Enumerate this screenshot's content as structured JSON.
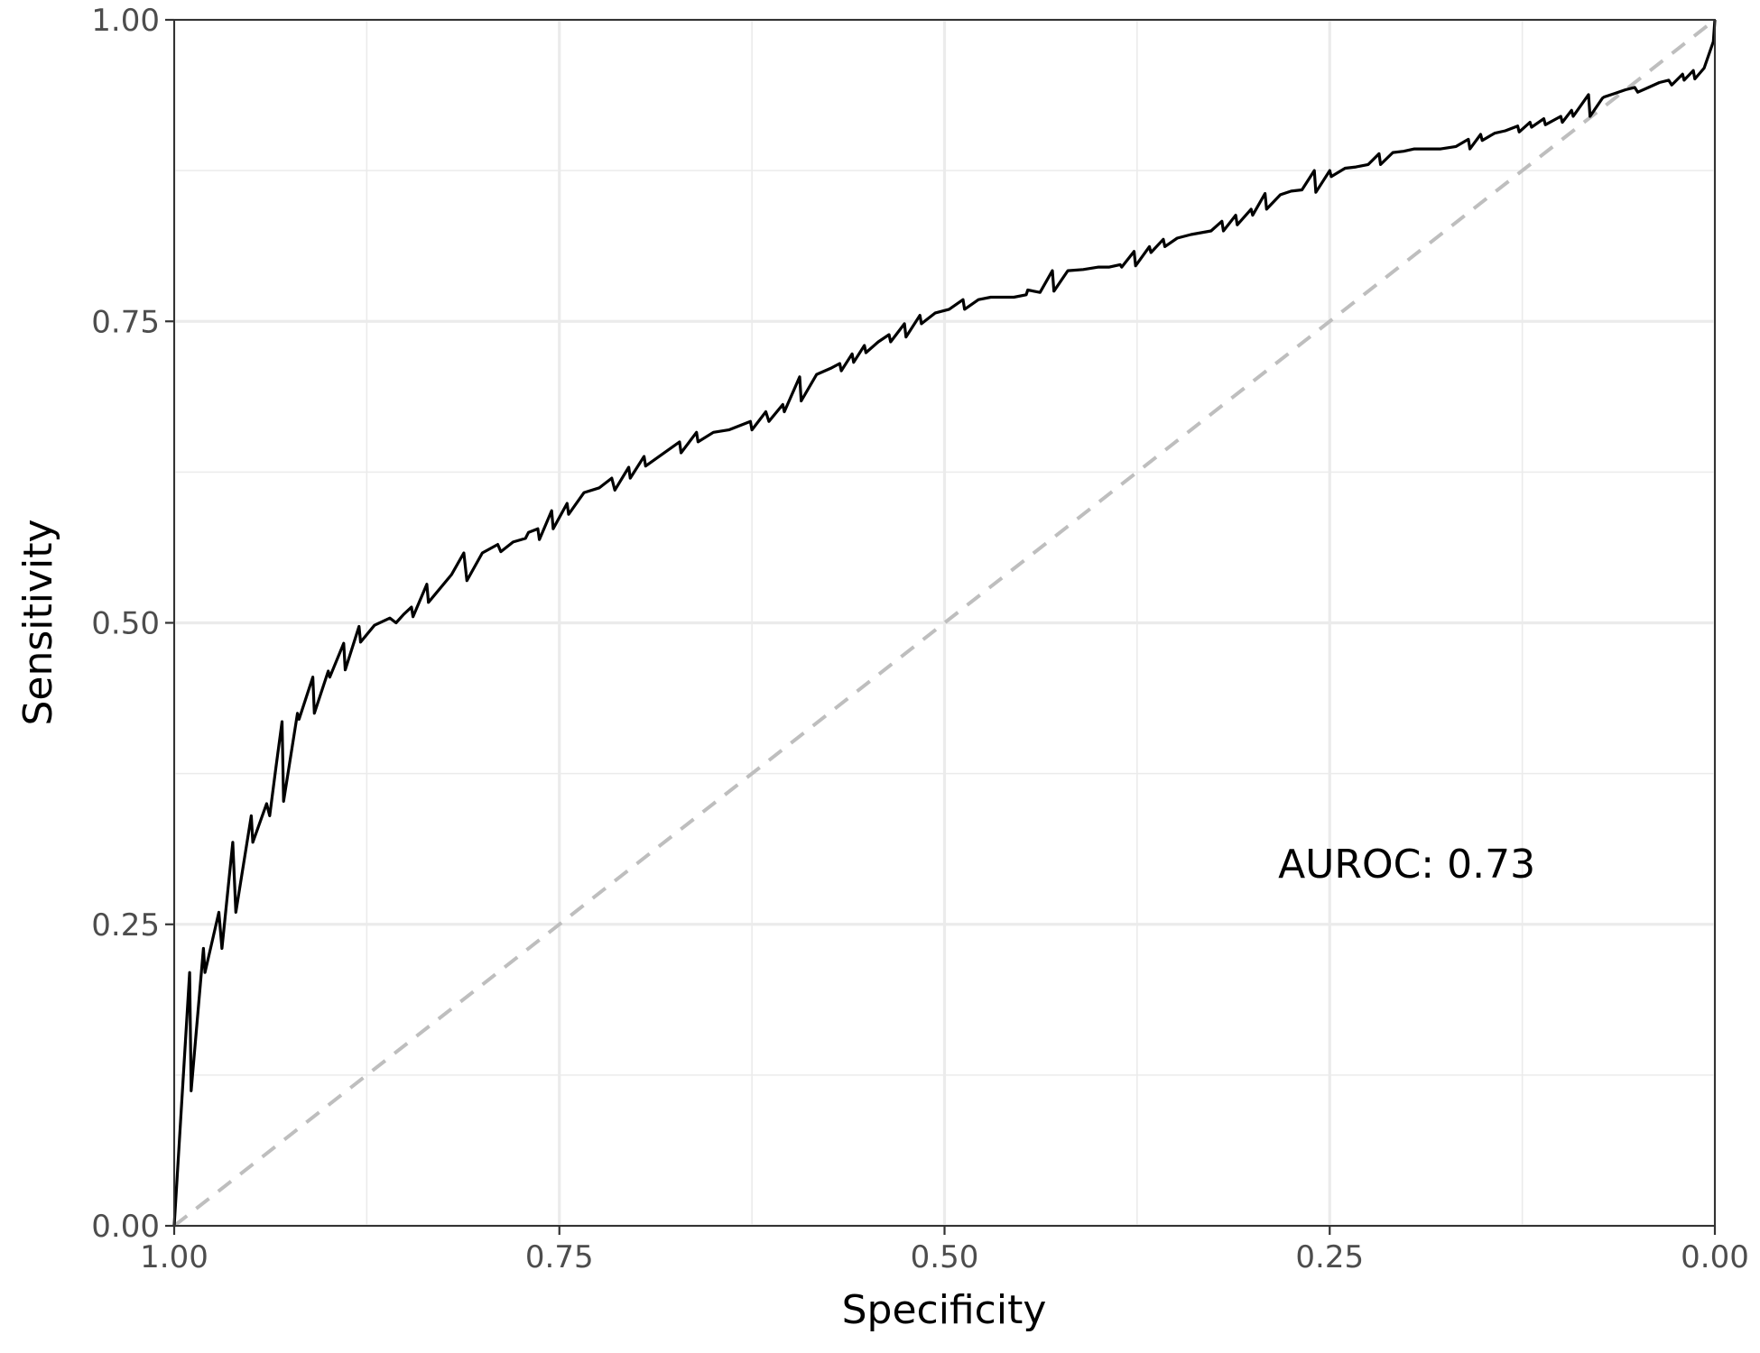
{
  "chart_data": {
    "type": "line",
    "xlabel": "Specificity",
    "ylabel": "Sensitivity",
    "xlim": [
      1.0,
      0.0
    ],
    "ylim": [
      0.0,
      1.0
    ],
    "x_reversed": true,
    "xticks": [
      1.0,
      0.75,
      0.5,
      0.25,
      0.0
    ],
    "yticks": [
      0.0,
      0.25,
      0.5,
      0.75,
      1.0
    ],
    "xtick_labels": [
      "1.00",
      "0.75",
      "0.50",
      "0.25",
      "0.00"
    ],
    "ytick_labels": [
      "0.00",
      "0.25",
      "0.50",
      "0.75",
      "1.00"
    ],
    "grid": true,
    "annotation": {
      "text": "AUROC: 0.73",
      "x": 0.2,
      "y": 0.3
    },
    "reference_line": {
      "style": "dashed",
      "color": "#bebebe",
      "points": [
        [
          1.0,
          0.0
        ],
        [
          0.0,
          1.0
        ]
      ]
    },
    "series": [
      {
        "color": "#000000",
        "points": [
          [
            1.0,
            0.0
          ],
          [
            0.99,
            0.21
          ],
          [
            0.989,
            0.112
          ],
          [
            0.981,
            0.23
          ],
          [
            0.98,
            0.21
          ],
          [
            0.971,
            0.26
          ],
          [
            0.969,
            0.23
          ],
          [
            0.962,
            0.318
          ],
          [
            0.96,
            0.26
          ],
          [
            0.95,
            0.34
          ],
          [
            0.949,
            0.318
          ],
          [
            0.94,
            0.35
          ],
          [
            0.938,
            0.34
          ],
          [
            0.934,
            0.38
          ],
          [
            0.93,
            0.418
          ],
          [
            0.929,
            0.352
          ],
          [
            0.92,
            0.425
          ],
          [
            0.919,
            0.42
          ],
          [
            0.91,
            0.455
          ],
          [
            0.909,
            0.425
          ],
          [
            0.9,
            0.46
          ],
          [
            0.899,
            0.455
          ],
          [
            0.89,
            0.483
          ],
          [
            0.889,
            0.461
          ],
          [
            0.88,
            0.497
          ],
          [
            0.879,
            0.484
          ],
          [
            0.87,
            0.498
          ],
          [
            0.86,
            0.504
          ],
          [
            0.856,
            0.5
          ],
          [
            0.851,
            0.507
          ],
          [
            0.846,
            0.513
          ],
          [
            0.845,
            0.505
          ],
          [
            0.836,
            0.532
          ],
          [
            0.835,
            0.517
          ],
          [
            0.82,
            0.54
          ],
          [
            0.812,
            0.558
          ],
          [
            0.81,
            0.535
          ],
          [
            0.8,
            0.558
          ],
          [
            0.79,
            0.565
          ],
          [
            0.788,
            0.559
          ],
          [
            0.78,
            0.567
          ],
          [
            0.772,
            0.57
          ],
          [
            0.77,
            0.575
          ],
          [
            0.764,
            0.578
          ],
          [
            0.763,
            0.569
          ],
          [
            0.755,
            0.593
          ],
          [
            0.754,
            0.578
          ],
          [
            0.745,
            0.599
          ],
          [
            0.744,
            0.59
          ],
          [
            0.734,
            0.608
          ],
          [
            0.724,
            0.612
          ],
          [
            0.716,
            0.62
          ],
          [
            0.714,
            0.61
          ],
          [
            0.705,
            0.629
          ],
          [
            0.704,
            0.62
          ],
          [
            0.695,
            0.638
          ],
          [
            0.694,
            0.63
          ],
          [
            0.683,
            0.64
          ],
          [
            0.672,
            0.65
          ],
          [
            0.671,
            0.641
          ],
          [
            0.661,
            0.658
          ],
          [
            0.66,
            0.65
          ],
          [
            0.65,
            0.658
          ],
          [
            0.64,
            0.66
          ],
          [
            0.626,
            0.667
          ],
          [
            0.625,
            0.66
          ],
          [
            0.616,
            0.675
          ],
          [
            0.614,
            0.667
          ],
          [
            0.605,
            0.681
          ],
          [
            0.604,
            0.675
          ],
          [
            0.594,
            0.704
          ],
          [
            0.593,
            0.684
          ],
          [
            0.583,
            0.706
          ],
          [
            0.574,
            0.711
          ],
          [
            0.568,
            0.715
          ],
          [
            0.567,
            0.709
          ],
          [
            0.56,
            0.723
          ],
          [
            0.559,
            0.716
          ],
          [
            0.552,
            0.73
          ],
          [
            0.551,
            0.724
          ],
          [
            0.543,
            0.733
          ],
          [
            0.536,
            0.739
          ],
          [
            0.535,
            0.733
          ],
          [
            0.526,
            0.748
          ],
          [
            0.525,
            0.737
          ],
          [
            0.516,
            0.755
          ],
          [
            0.515,
            0.748
          ],
          [
            0.506,
            0.757
          ],
          [
            0.497,
            0.76
          ],
          [
            0.488,
            0.768
          ],
          [
            0.487,
            0.76
          ],
          [
            0.478,
            0.768
          ],
          [
            0.47,
            0.77
          ],
          [
            0.455,
            0.77
          ],
          [
            0.447,
            0.772
          ],
          [
            0.446,
            0.776
          ],
          [
            0.438,
            0.774
          ],
          [
            0.43,
            0.792
          ],
          [
            0.429,
            0.775
          ],
          [
            0.42,
            0.792
          ],
          [
            0.41,
            0.793
          ],
          [
            0.4,
            0.795
          ],
          [
            0.393,
            0.795
          ],
          [
            0.386,
            0.797
          ],
          [
            0.385,
            0.795
          ],
          [
            0.377,
            0.808
          ],
          [
            0.376,
            0.796
          ],
          [
            0.367,
            0.812
          ],
          [
            0.366,
            0.807
          ],
          [
            0.358,
            0.818
          ],
          [
            0.357,
            0.812
          ],
          [
            0.349,
            0.819
          ],
          [
            0.34,
            0.822
          ],
          [
            0.327,
            0.825
          ],
          [
            0.32,
            0.833
          ],
          [
            0.319,
            0.825
          ],
          [
            0.311,
            0.838
          ],
          [
            0.31,
            0.83
          ],
          [
            0.301,
            0.843
          ],
          [
            0.3,
            0.838
          ],
          [
            0.292,
            0.856
          ],
          [
            0.291,
            0.843
          ],
          [
            0.282,
            0.855
          ],
          [
            0.275,
            0.858
          ],
          [
            0.268,
            0.859
          ],
          [
            0.26,
            0.875
          ],
          [
            0.259,
            0.857
          ],
          [
            0.25,
            0.875
          ],
          [
            0.249,
            0.87
          ],
          [
            0.24,
            0.877
          ],
          [
            0.233,
            0.878
          ],
          [
            0.225,
            0.88
          ],
          [
            0.218,
            0.889
          ],
          [
            0.217,
            0.88
          ],
          [
            0.209,
            0.89
          ],
          [
            0.202,
            0.891
          ],
          [
            0.195,
            0.893
          ],
          [
            0.186,
            0.893
          ],
          [
            0.178,
            0.893
          ],
          [
            0.168,
            0.895
          ],
          [
            0.16,
            0.901
          ],
          [
            0.159,
            0.893
          ],
          [
            0.152,
            0.905
          ],
          [
            0.151,
            0.9
          ],
          [
            0.143,
            0.906
          ],
          [
            0.136,
            0.908
          ],
          [
            0.128,
            0.912
          ],
          [
            0.127,
            0.907
          ],
          [
            0.12,
            0.915
          ],
          [
            0.119,
            0.911
          ],
          [
            0.111,
            0.918
          ],
          [
            0.11,
            0.913
          ],
          [
            0.1,
            0.92
          ],
          [
            0.099,
            0.915
          ],
          [
            0.093,
            0.925
          ],
          [
            0.092,
            0.92
          ],
          [
            0.082,
            0.938
          ],
          [
            0.081,
            0.92
          ],
          [
            0.073,
            0.935
          ],
          [
            0.072,
            0.936
          ],
          [
            0.065,
            0.939
          ],
          [
            0.058,
            0.942
          ],
          [
            0.052,
            0.944
          ],
          [
            0.05,
            0.94
          ],
          [
            0.043,
            0.944
          ],
          [
            0.036,
            0.948
          ],
          [
            0.03,
            0.95
          ],
          [
            0.028,
            0.946
          ],
          [
            0.021,
            0.955
          ],
          [
            0.02,
            0.95
          ],
          [
            0.014,
            0.958
          ],
          [
            0.013,
            0.951
          ],
          [
            0.007,
            0.96
          ],
          [
            0.001,
            0.982
          ],
          [
            0.0,
            1.0
          ]
        ]
      }
    ]
  }
}
